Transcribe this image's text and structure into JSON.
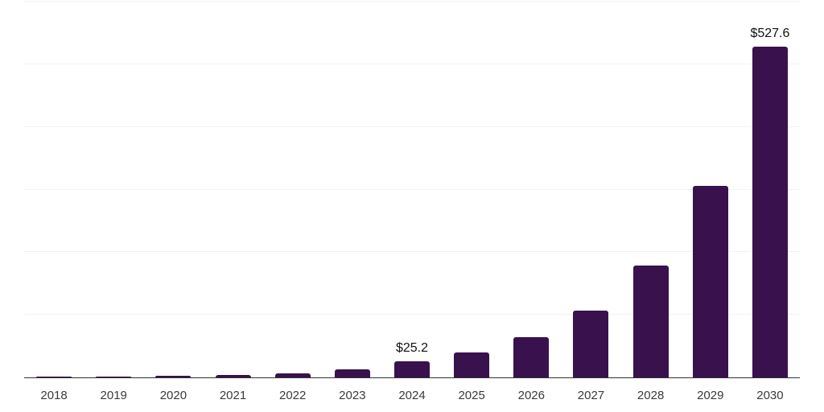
{
  "chart_data": {
    "type": "bar",
    "title": "",
    "xlabel": "",
    "ylabel": "",
    "categories": [
      "2018",
      "2019",
      "2020",
      "2021",
      "2022",
      "2023",
      "2024",
      "2025",
      "2026",
      "2027",
      "2028",
      "2029",
      "2030"
    ],
    "values": [
      1.0,
      1.6,
      2.5,
      4.0,
      6.4,
      12.8,
      25.2,
      39.7,
      64.0,
      107.1,
      178.4,
      305.6,
      527.6
    ],
    "value_labels": {
      "6": "$25.2",
      "12": "$527.6"
    },
    "ylim": [
      0,
      600
    ],
    "gridline_step": 100,
    "grid": true,
    "legend": false,
    "y_axis_tick_labels_visible": false
  },
  "styles": {
    "background": "#ffffff",
    "bar_color": "#38114d",
    "axis_color": "#333333",
    "gridline_color": "#f2f2f2",
    "tick_label_color": "#3a3a3a",
    "value_label_color": "#111111"
  }
}
